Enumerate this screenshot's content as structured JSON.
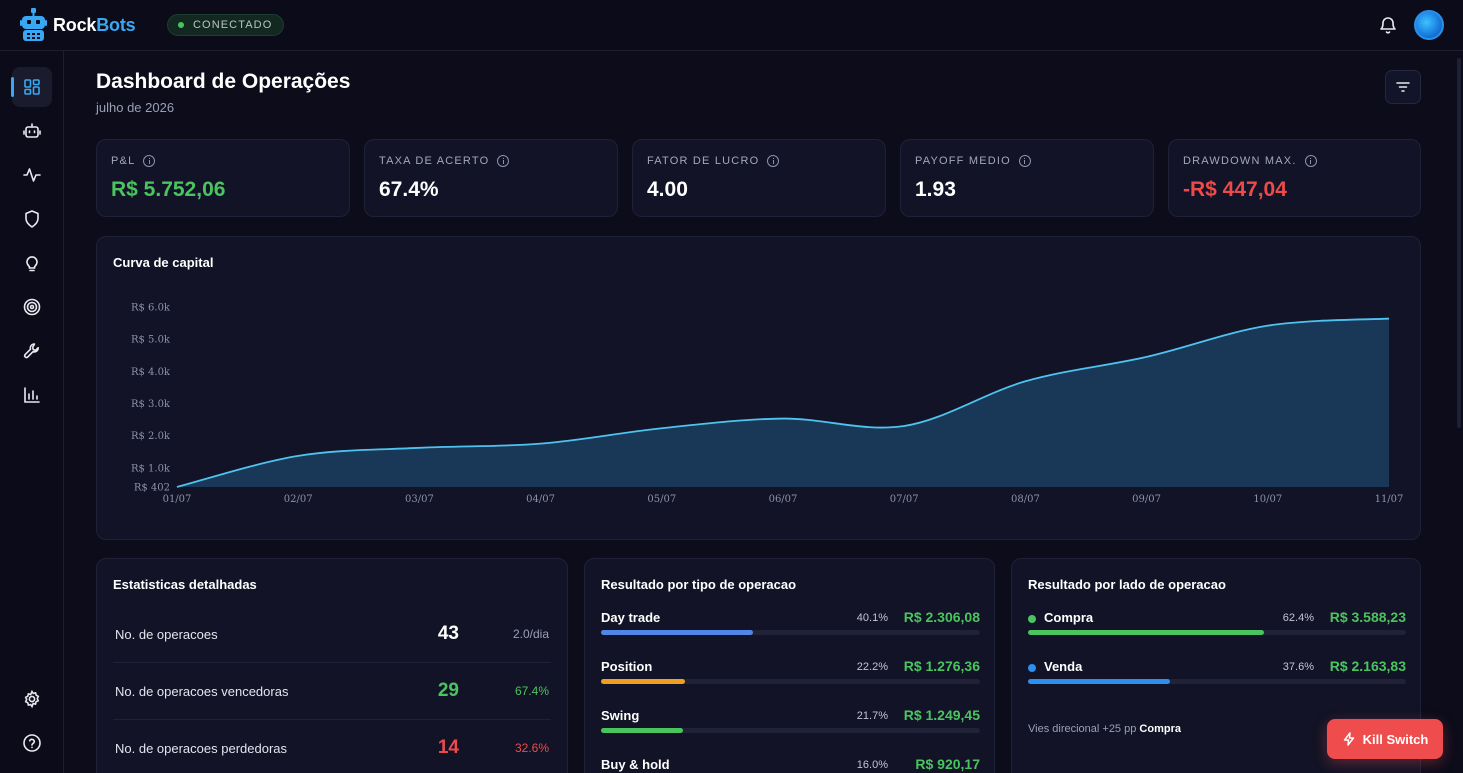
{
  "app": {
    "brand_part1": "Rock",
    "brand_part2": "Bots",
    "status": "CONECTADO",
    "icons": [
      "robot-logo-icon",
      "bell-icon",
      "avatar"
    ]
  },
  "sidebar": {
    "items": [
      {
        "name": "dashboard",
        "icon": "grid-icon",
        "active": true
      },
      {
        "name": "bots",
        "icon": "robot-icon",
        "active": false
      },
      {
        "name": "activity",
        "icon": "pulse-icon",
        "active": false
      },
      {
        "name": "risk",
        "icon": "shield-icon",
        "active": false
      },
      {
        "name": "ideas",
        "icon": "lightbulb-icon",
        "active": false
      },
      {
        "name": "targets",
        "icon": "target-icon",
        "active": false
      },
      {
        "name": "tools",
        "icon": "wrench-icon",
        "active": false
      },
      {
        "name": "reports",
        "icon": "bar-chart-icon",
        "active": false
      },
      {
        "name": "settings",
        "icon": "gear-icon",
        "active": false
      },
      {
        "name": "help",
        "icon": "help-icon",
        "active": false
      }
    ]
  },
  "header": {
    "title": "Dashboard de Operações",
    "subtitle": "julho de 2026"
  },
  "kpis": [
    {
      "label": "P&L",
      "value": "R$ 5.752,06",
      "tone": "green"
    },
    {
      "label": "TAXA DE ACERTO",
      "value": "67.4%",
      "tone": "white"
    },
    {
      "label": "FATOR DE LUCRO",
      "value": "4.00",
      "tone": "white"
    },
    {
      "label": "PAYOFF MEDIO",
      "value": "1.93",
      "tone": "white"
    },
    {
      "label": "DRAWDOWN MAX.",
      "value": "-R$ 447,04",
      "tone": "red"
    }
  ],
  "equity": {
    "title": "Curva de capital"
  },
  "chart_data": {
    "type": "area",
    "title": "Curva de capital",
    "x": [
      "01/07",
      "02/07",
      "03/07",
      "04/07",
      "05/07",
      "06/07",
      "07/07",
      "08/07",
      "09/07",
      "10/07",
      "11/07"
    ],
    "values": [
      402,
      1370,
      1620,
      1750,
      2230,
      2530,
      2300,
      3690,
      4450,
      5420,
      5640
    ],
    "y_ticks": [
      402,
      1000,
      2000,
      3000,
      4000,
      5000,
      6000
    ],
    "y_tick_labels": [
      "R$ 402",
      "R$ 1.0k",
      "R$ 2.0k",
      "R$ 3.0k",
      "R$ 4.0k",
      "R$ 5.0k",
      "R$ 6.0k"
    ],
    "ylim": [
      402,
      6000
    ],
    "colors": {
      "line": "#4fc3f0",
      "fill": "#1a3a5a"
    },
    "grid": false
  },
  "stats": {
    "title": "Estatisticas detalhadas",
    "rows": [
      {
        "label": "No. de operacoes",
        "value": "43",
        "sub": "2.0/dia",
        "tone": "#ffffff",
        "sub_tone": "#9aa0b4"
      },
      {
        "label": "No. de operacoes vencedoras",
        "value": "29",
        "sub": "67.4%",
        "tone": "#4ac45f",
        "sub_tone": "#4ac45f"
      },
      {
        "label": "No. de operacoes perdedoras",
        "value": "14",
        "sub": "32.6%",
        "tone": "#ef4a4a",
        "sub_tone": "#ef4a4a"
      }
    ]
  },
  "by_type": {
    "title": "Resultado por tipo de operacao",
    "rows": [
      {
        "label": "Day trade",
        "pct": "40.1%",
        "share": 0.401,
        "value": "R$ 2.306,08",
        "color": "#4f86e8"
      },
      {
        "label": "Position",
        "pct": "22.2%",
        "share": 0.222,
        "value": "R$ 1.276,36",
        "color": "#f0a020"
      },
      {
        "label": "Swing",
        "pct": "21.7%",
        "share": 0.217,
        "value": "R$ 1.249,45",
        "color": "#4ac45f"
      },
      {
        "label": "Buy & hold",
        "pct": "16.0%",
        "share": 0.16,
        "value": "R$ 920,17",
        "color": "#a06af0"
      }
    ]
  },
  "by_side": {
    "title": "Resultado por lado de operacao",
    "rows": [
      {
        "label": "Compra",
        "pct": "62.4%",
        "share": 0.624,
        "value": "R$ 3.588,23",
        "color": "#4ac45f"
      },
      {
        "label": "Venda",
        "pct": "37.6%",
        "share": 0.376,
        "value": "R$ 2.163,83",
        "color": "#2a8fef"
      }
    ],
    "bias_text": "Vies direcional +25 pp",
    "bias_side": "Compra"
  },
  "kill_switch": {
    "label": "Kill Switch",
    "icon": "lightning-icon"
  }
}
